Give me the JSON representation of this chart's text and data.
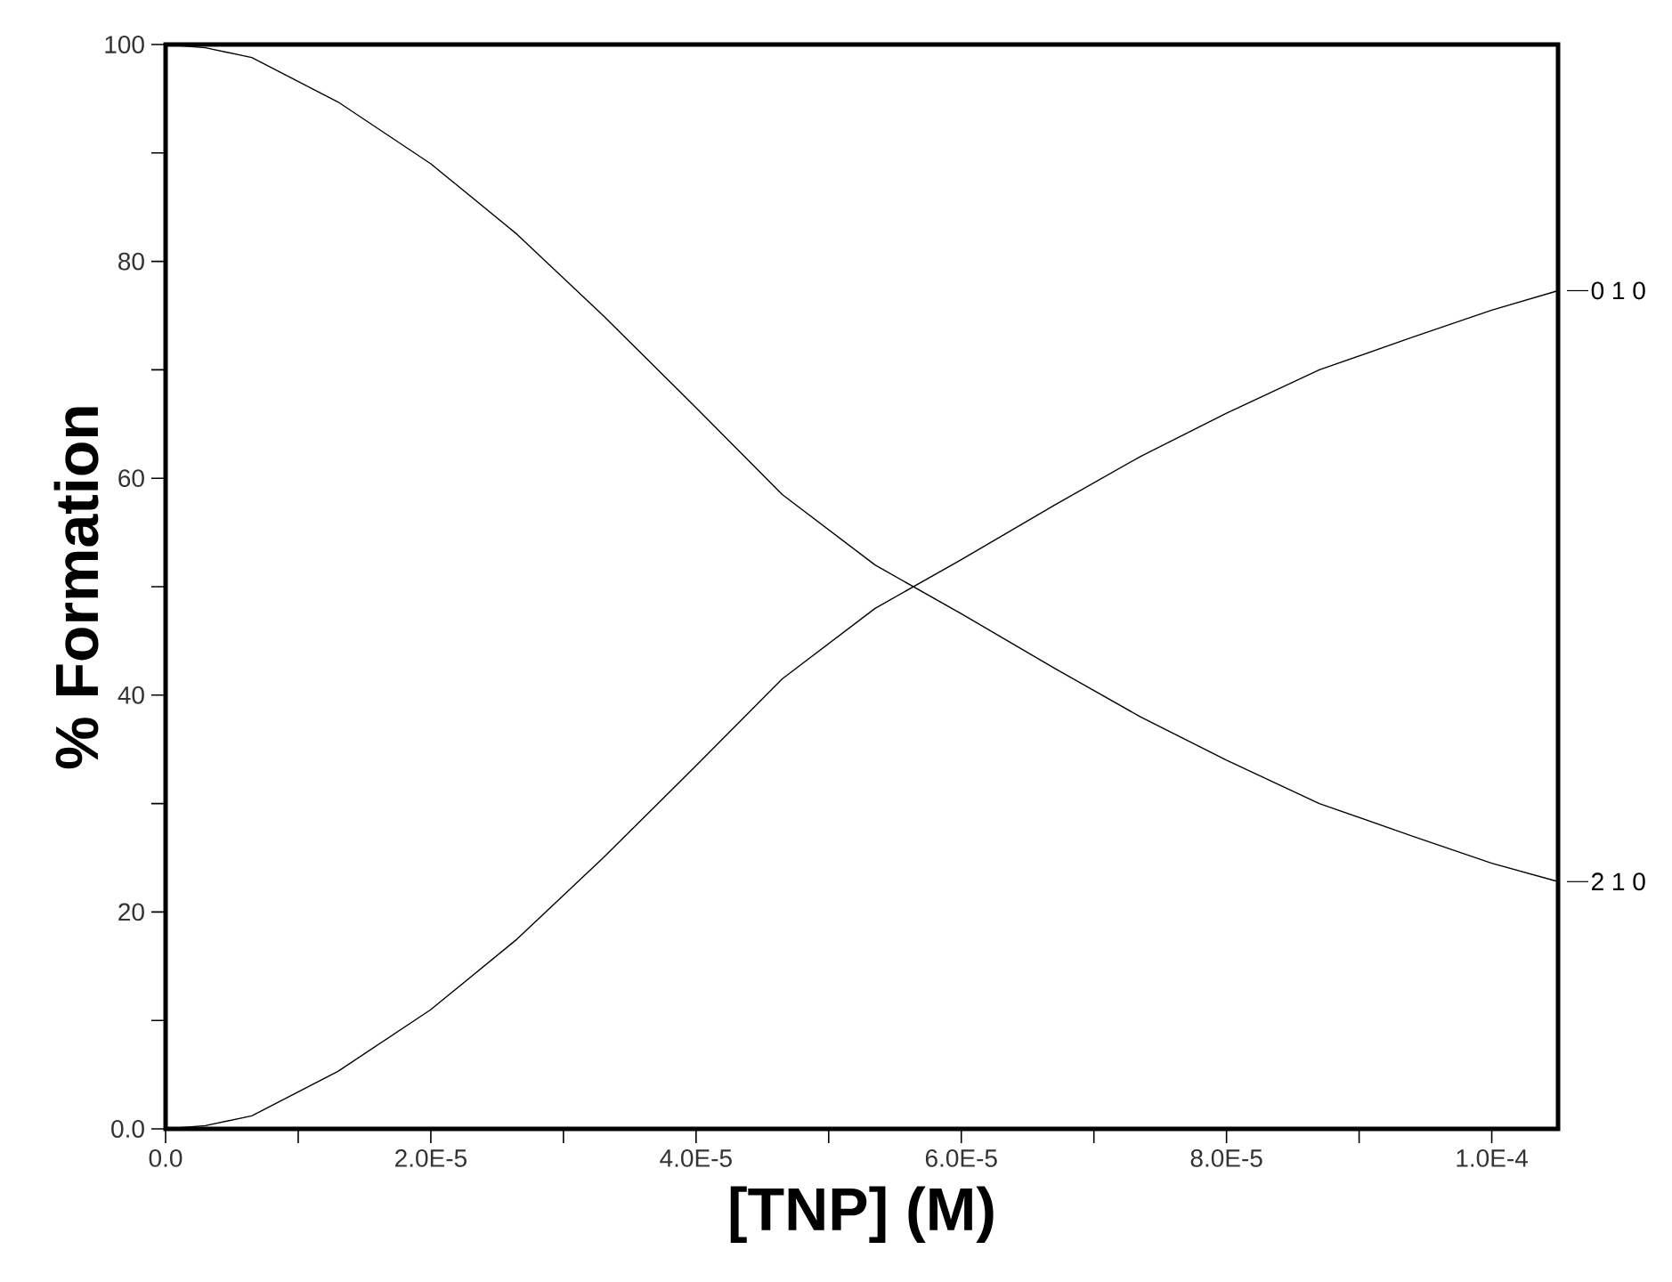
{
  "chart_data": {
    "type": "line",
    "xlabel": "[TNP] (M)",
    "ylabel": "% Formation",
    "x": [
      0,
      3e-06,
      6.5e-06,
      1.3e-05,
      2e-05,
      2.65e-05,
      3.3e-05,
      4e-05,
      4.65e-05,
      5.35e-05,
      6e-05,
      6.7e-05,
      7.35e-05,
      8e-05,
      8.7e-05,
      9.4e-05,
      0.0001,
      0.000105
    ],
    "series": [
      {
        "name": "0 1 0",
        "color": "#000000",
        "values": [
          0,
          0.3,
          1.2,
          5.3,
          11,
          17.5,
          25,
          33.5,
          41.5,
          48,
          52.5,
          57.5,
          62,
          66,
          70,
          73,
          75.5,
          77.3
        ]
      },
      {
        "name": "2 1 0",
        "color": "#000000",
        "values": [
          100,
          99.7,
          98.8,
          94.7,
          89,
          82.5,
          75,
          66.5,
          58.5,
          52,
          47.5,
          42.5,
          38,
          34,
          30,
          27,
          24.5,
          22.8
        ]
      }
    ],
    "xlim": [
      0,
      0.000105
    ],
    "ylim": [
      0,
      100
    ],
    "xticks": [
      {
        "value": 0,
        "label": "0.0"
      },
      {
        "value": 1e-05,
        "label": null
      },
      {
        "value": 2e-05,
        "label": "2.0E-5"
      },
      {
        "value": 3e-05,
        "label": null
      },
      {
        "value": 4e-05,
        "label": "4.0E-5"
      },
      {
        "value": 5e-05,
        "label": null
      },
      {
        "value": 6e-05,
        "label": "6.0E-5"
      },
      {
        "value": 7e-05,
        "label": null
      },
      {
        "value": 8e-05,
        "label": "8.0E-5"
      },
      {
        "value": 9e-05,
        "label": null
      },
      {
        "value": 0.0001,
        "label": "1.0E-4"
      }
    ],
    "yticks": [
      {
        "value": 0,
        "label": "0.0"
      },
      {
        "value": 10,
        "label": null
      },
      20,
      {
        "value": 30,
        "label": null
      },
      40,
      {
        "value": 50,
        "label": null
      },
      60,
      {
        "value": 70,
        "label": null
      },
      80,
      {
        "value": 90,
        "label": null
      },
      100
    ],
    "grid": false,
    "legend": "right",
    "marker": "none",
    "line_style": "solid"
  }
}
